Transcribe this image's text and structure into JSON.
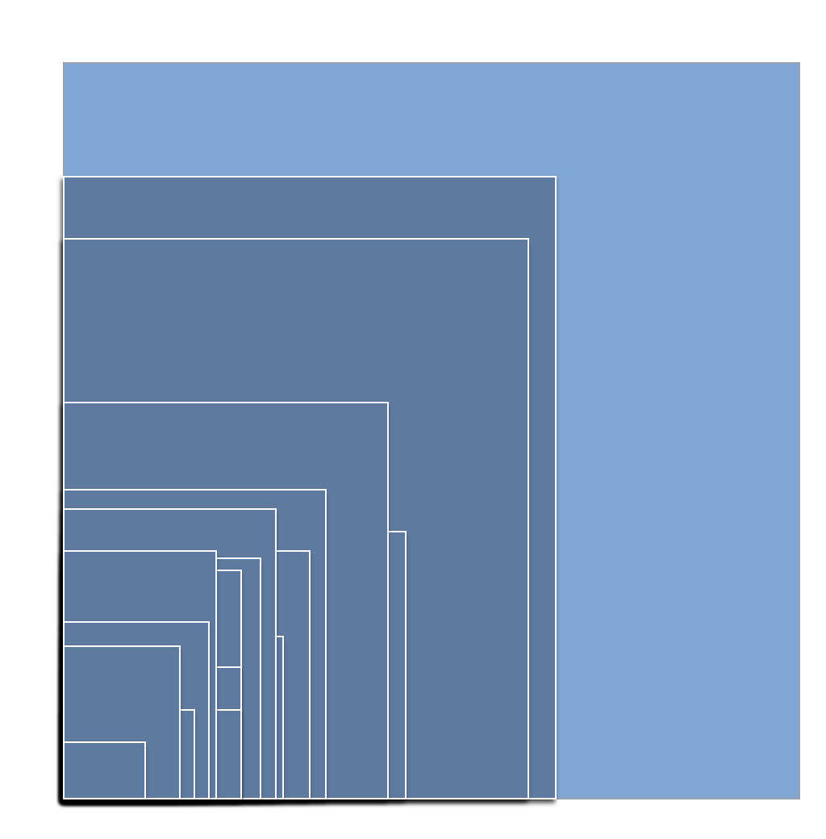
{
  "colors": {
    "background": "#ffffff",
    "outer_fill": "#81a6d4",
    "outer_stroke": "#9aa3ad",
    "nested_fill": "#5e7a9f",
    "nested_stroke": "#ffffff",
    "shadow": "#000000"
  },
  "diagram": {
    "kind": "nested squares anchored at bottom-left",
    "square_count": 18
  }
}
